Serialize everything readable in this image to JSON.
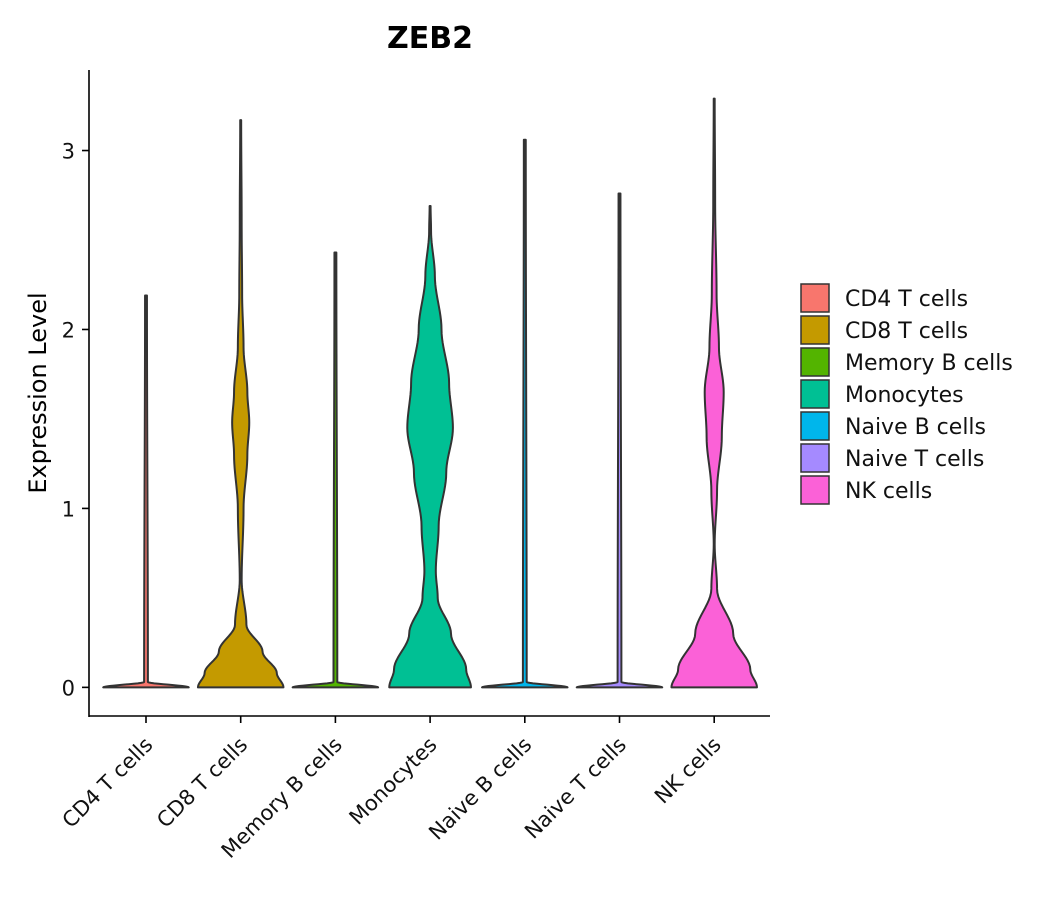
{
  "chart_data": {
    "type": "violin",
    "title": "ZEB2",
    "xlabel": "",
    "ylabel": "Expression Level",
    "ylim": [
      -0.16,
      3.45
    ],
    "yticks": [
      0,
      1,
      2,
      3
    ],
    "ytick_labels": [
      "0",
      "1",
      "2",
      "3"
    ],
    "categories": [
      "CD4 T cells",
      "CD8 T cells",
      "Memory B cells",
      "Monocytes",
      "Naive B cells",
      "Naive T cells",
      "NK cells"
    ],
    "colors": [
      "#F8766D",
      "#C49A00",
      "#53B400",
      "#00C094",
      "#00B6EB",
      "#A58AFF",
      "#FB61D7"
    ],
    "legend_position": "right",
    "series": [
      {
        "name": "CD4 T cells",
        "max": 2.19,
        "density": [
          [
            0,
            0.45
          ],
          [
            0.03,
            0.02
          ],
          [
            2.19,
            0.01
          ]
        ]
      },
      {
        "name": "CD8 T cells",
        "max": 3.17,
        "density": [
          [
            0,
            0.45
          ],
          [
            0.08,
            0.38
          ],
          [
            0.2,
            0.23
          ],
          [
            0.35,
            0.06
          ],
          [
            0.6,
            0.01
          ],
          [
            1.0,
            0.03
          ],
          [
            1.3,
            0.07
          ],
          [
            1.48,
            0.09
          ],
          [
            1.65,
            0.07
          ],
          [
            1.9,
            0.03
          ],
          [
            2.2,
            0.015
          ],
          [
            2.6,
            0.01
          ],
          [
            3.17,
            0.005
          ]
        ]
      },
      {
        "name": "Memory B cells",
        "max": 2.43,
        "density": [
          [
            0,
            0.45
          ],
          [
            0.03,
            0.02
          ],
          [
            2.43,
            0.01
          ]
        ]
      },
      {
        "name": "Monocytes",
        "max": 2.69,
        "density": [
          [
            0,
            0.43
          ],
          [
            0.1,
            0.38
          ],
          [
            0.3,
            0.22
          ],
          [
            0.5,
            0.08
          ],
          [
            0.65,
            0.06
          ],
          [
            0.9,
            0.09
          ],
          [
            1.2,
            0.17
          ],
          [
            1.45,
            0.24
          ],
          [
            1.7,
            0.2
          ],
          [
            2.0,
            0.12
          ],
          [
            2.3,
            0.05
          ],
          [
            2.55,
            0.01
          ],
          [
            2.69,
            0.005
          ]
        ]
      },
      {
        "name": "Naive B cells",
        "max": 3.06,
        "density": [
          [
            0,
            0.45
          ],
          [
            0.03,
            0.02
          ],
          [
            3.06,
            0.01
          ]
        ]
      },
      {
        "name": "Naive T cells",
        "max": 2.76,
        "density": [
          [
            0,
            0.45
          ],
          [
            0.03,
            0.02
          ],
          [
            2.76,
            0.01
          ]
        ]
      },
      {
        "name": "NK cells",
        "max": 3.29,
        "density": [
          [
            0,
            0.45
          ],
          [
            0.1,
            0.38
          ],
          [
            0.3,
            0.2
          ],
          [
            0.55,
            0.03
          ],
          [
            0.8,
            0.005
          ],
          [
            1.1,
            0.03
          ],
          [
            1.4,
            0.08
          ],
          [
            1.65,
            0.1
          ],
          [
            1.9,
            0.05
          ],
          [
            2.2,
            0.025
          ],
          [
            2.7,
            0.01
          ],
          [
            3.29,
            0.005
          ]
        ]
      }
    ]
  }
}
